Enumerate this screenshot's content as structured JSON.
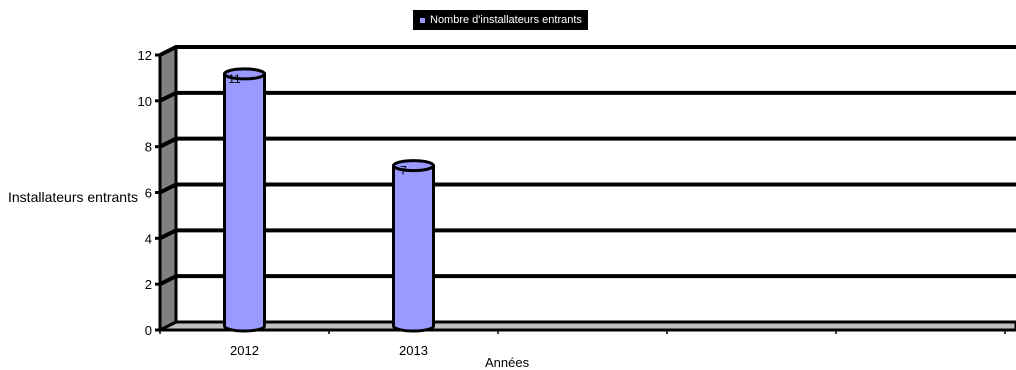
{
  "chart_data": {
    "type": "bar",
    "categories": [
      "2012",
      "2013",
      "",
      "",
      ""
    ],
    "series": [
      {
        "name": "Nombre d'installateurs entrants",
        "values": [
          11,
          7,
          null,
          null,
          null
        ]
      }
    ],
    "data_labels": [
      "11",
      "7"
    ],
    "xlabel": "Années",
    "ylabel": "Installateurs entrants",
    "ylim": [
      0,
      12
    ],
    "yticks": [
      0,
      2,
      4,
      6,
      8,
      10,
      12
    ],
    "grid": true,
    "legend_position": "top-center",
    "colors": {
      "bar": "#9999ff",
      "floor": "#c0c0c0",
      "wall": "#808080",
      "lines": "#000000"
    }
  }
}
